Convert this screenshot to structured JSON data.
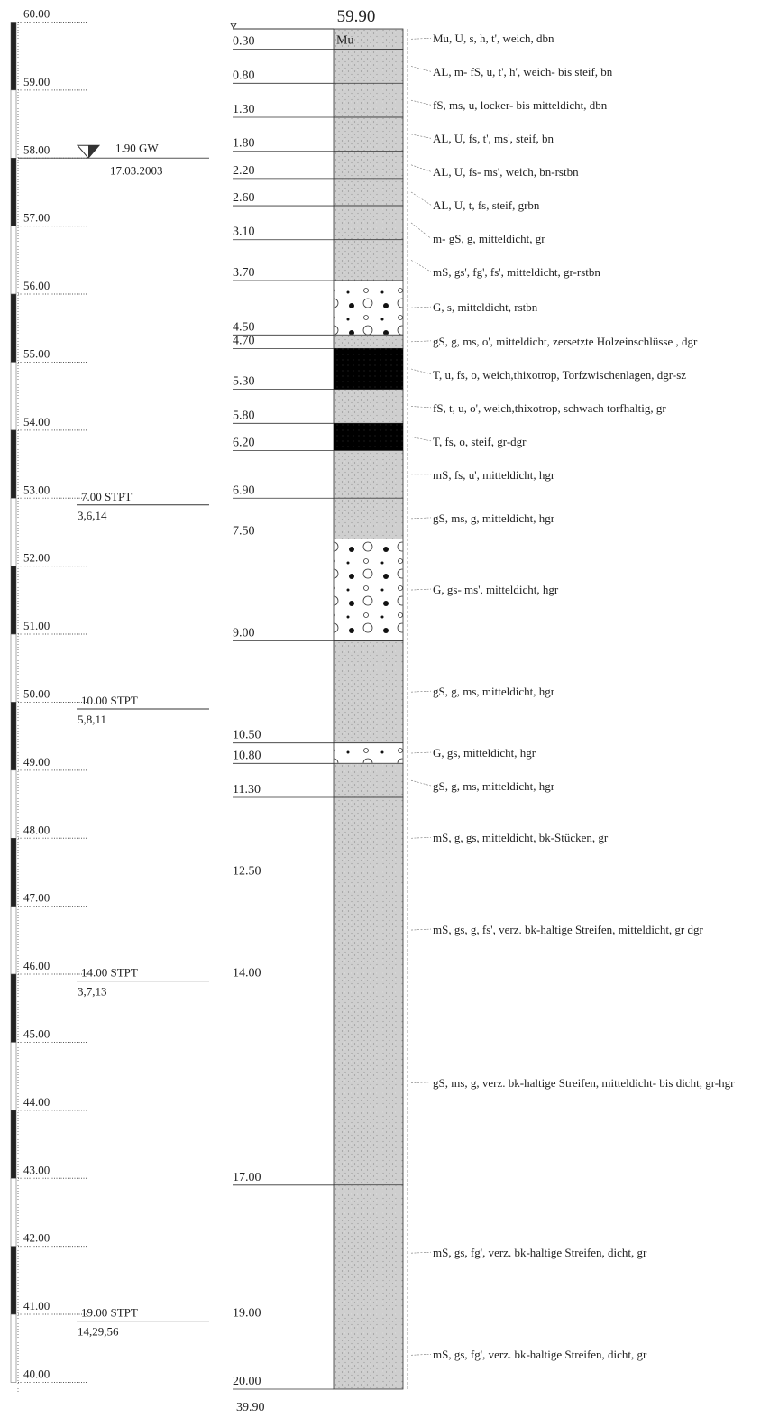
{
  "title_elevation": "59.90",
  "bottom_elevation": "39.90",
  "elevation_scale": [
    "60.00",
    "59.00",
    "58.00",
    "57.00",
    "56.00",
    "55.00",
    "54.00",
    "53.00",
    "52.00",
    "51.00",
    "50.00",
    "49.00",
    "48.00",
    "47.00",
    "46.00",
    "45.00",
    "44.00",
    "43.00",
    "42.00",
    "41.00",
    "40.00"
  ],
  "groundwater": {
    "label": "1.90 GW",
    "date": "17.03.2003"
  },
  "spt_tests": [
    {
      "label": "7.00 STPT",
      "blows": "3,6,14"
    },
    {
      "label": "10.00 STPT",
      "blows": "5,8,11"
    },
    {
      "label": "14.00 STPT",
      "blows": "3,7,13"
    },
    {
      "label": "19.00 STPT",
      "blows": "14,29,56"
    }
  ],
  "layers": [
    {
      "symbol": "Mu",
      "bottom": "0.30",
      "color": "#c8c8c8",
      "text": "Mu, U, s, h, t', weich, dbn"
    },
    {
      "bottom": "0.80",
      "color": "#c8c8c8",
      "text": "AL, m- fS, u, t', h', weich- bis steif, bn"
    },
    {
      "bottom": "1.30",
      "color": "#c8c8c8",
      "text": "fS, ms, u, locker- bis mitteldicht, dbn"
    },
    {
      "bottom": "1.80",
      "color": "#c8c8c8",
      "text": "AL, U, fs, t', ms', steif, bn"
    },
    {
      "bottom": "2.20",
      "color": "#c8c8c8",
      "text": "AL, U, fs- ms', weich, bn-rstbn"
    },
    {
      "bottom": "2.60",
      "color": "#c8c8c8",
      "text": "AL, U, t, fs, steif, grbn"
    },
    {
      "bottom": "3.10",
      "color": "#c8c8c8",
      "text": "m- gS, g, mitteldicht, gr"
    },
    {
      "bottom": "3.70",
      "color": "#c8c8c8",
      "text": "mS, gs', fg', fs', mitteldicht, gr-rstbn"
    },
    {
      "bottom": "4.50",
      "color": "#ffffff",
      "text": "G, s, mitteldicht, rstbn"
    },
    {
      "bottom": "4.70",
      "color": "#c8c8c8",
      "text": "gS, g, ms, o', mitteldicht, zersetzte Holzeinschlüsse , dgr"
    },
    {
      "bottom": "5.30",
      "color": "#000000",
      "text": "T, u, fs, o, weich,thixotrop, Torfzwischenlagen, dgr-sz"
    },
    {
      "bottom": "5.80",
      "color": "#c8c8c8",
      "text": "fS, t, u, o', weich,thixotrop, schwach torfhaltig, gr"
    },
    {
      "bottom": "6.20",
      "color": "#000000",
      "text": "T, fs, o, steif, gr-dgr"
    },
    {
      "bottom": "6.90",
      "color": "#c8c8c8",
      "text": "mS, fs, u', mitteldicht, hgr"
    },
    {
      "bottom": "7.50",
      "color": "#c8c8c8",
      "text": "gS, ms, g, mitteldicht, hgr"
    },
    {
      "bottom": "9.00",
      "color": "#ffffff",
      "text": "G, gs- ms', mitteldicht, hgr"
    },
    {
      "bottom": "10.50",
      "color": "#c8c8c8",
      "text": "gS, g, ms, mitteldicht, hgr"
    },
    {
      "bottom": "10.80",
      "color": "#ffffff",
      "text": "G, gs, mitteldicht, hgr"
    },
    {
      "bottom": "11.30",
      "color": "#c8c8c8",
      "text": "gS, g, ms, mitteldicht, hgr"
    },
    {
      "bottom": "12.50",
      "color": "#c8c8c8",
      "text": "mS, g, gs, mitteldicht, bk-Stücken, gr"
    },
    {
      "bottom": "14.00",
      "color": "#c8c8c8",
      "text": "mS, gs, g, fs', verz. bk-haltige Streifen, mitteldicht, gr dgr"
    },
    {
      "bottom": "17.00",
      "color": "#c8c8c8",
      "text": "gS, ms, g, verz. bk-haltige Streifen, mitteldicht- bis dicht, gr-hgr"
    },
    {
      "bottom": "19.00",
      "color": "#c8c8c8",
      "text": "mS, gs, fg', verz. bk-haltige Streifen, dicht, gr"
    },
    {
      "bottom": "20.00",
      "color": "#c8c8c8",
      "text": "mS, gs, fg', verz. bk-haltige Streifen, dicht, gr"
    }
  ]
}
